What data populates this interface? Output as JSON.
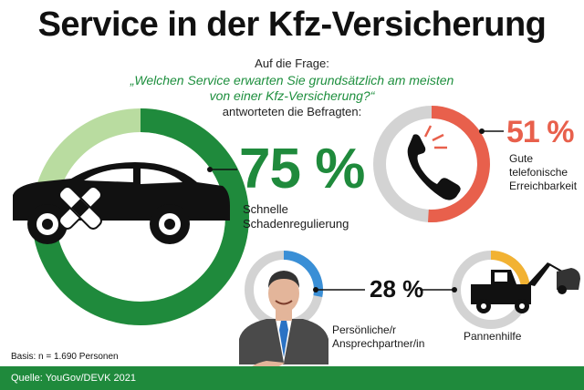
{
  "title": "Service in der Kfz-Versicherung",
  "intro": {
    "line1": "Auf die Frage:",
    "question_line1": "„Welchen Service erwarten Sie grundsätzlich am meisten",
    "question_line2": "von einer Kfz-Versicherung?“",
    "line2": "antworteten die Befragten:"
  },
  "chart_data": {
    "type": "donut",
    "unit": "%",
    "items": [
      {
        "label": "Schnelle Schadenregulierung",
        "label_lines": [
          "Schnelle",
          "Schadenregulierung"
        ],
        "value": 75,
        "display": "75 %",
        "color": "#1f8a3c",
        "track_color": "#b9dca0",
        "icon": "damaged-car-icon"
      },
      {
        "label": "Gute telefonische Erreichbarkeit",
        "label_lines": [
          "Gute",
          "telefonische",
          "Erreichbarkeit"
        ],
        "value": 51,
        "display": "51 %",
        "color": "#e8604c",
        "track_color": "#d3d3d3",
        "icon": "phone-icon"
      },
      {
        "label": "Persönliche/r Ansprechpartner/in",
        "label_lines": [
          "Persönliche/r",
          "Ansprechpartner/in"
        ],
        "value": 28,
        "display": "28 %",
        "color": "#3a8fd6",
        "track_color": "#d3d3d3",
        "icon": "businessman-icon"
      },
      {
        "label": "Pannenhilfe",
        "label_lines": [
          "Pannenhilfe"
        ],
        "value": 28,
        "display": "28 %",
        "color": "#f2b233",
        "track_color": "#d3d3d3",
        "icon": "tow-truck-icon"
      }
    ]
  },
  "basis": "Basis: n = 1.690 Personen",
  "source": "Quelle: YouGov/DEVK 2021",
  "colors": {
    "green": "#1f8a3c",
    "footer": "#1f8a3c"
  }
}
